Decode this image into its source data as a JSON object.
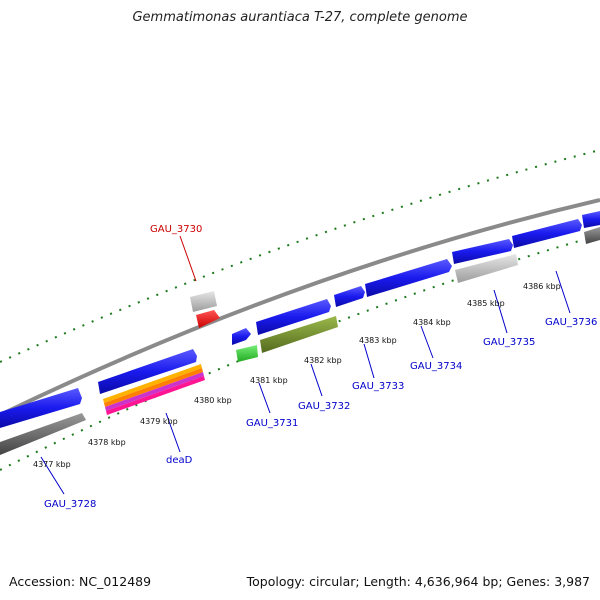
{
  "title": "Gemmatimonas aurantiaca T-27, complete genome",
  "footer": {
    "accession": "Accession: NC_012489",
    "summary": "Topology: circular; Length: 4,636,964 bp; Genes: 3,987"
  },
  "colors": {
    "forward_cds": "#1a1aee",
    "reverse_cds": "#6e6e6e",
    "grey_gene": "#c4c4c4",
    "highlight_gene": "#ee1111",
    "green_gene": "#33cc33",
    "olive_gene": "#6b8e23",
    "backbone": "#8a8a8a",
    "gc_ticks": "#1e7a1e",
    "label_blue": "#0000cc",
    "label_red": "#cc0000"
  },
  "kbp_labels": [
    "4377 kbp",
    "4378 kbp",
    "4379 kbp",
    "4380 kbp",
    "4381 kbp",
    "4382 kbp",
    "4383 kbp",
    "4384 kbp",
    "4385 kbp",
    "4386 kbp"
  ],
  "gene_labels": [
    "GAU_3728",
    "deaD",
    "GAU_3730",
    "GAU_3731",
    "GAU_3732",
    "GAU_3733",
    "GAU_3734",
    "GAU_3735",
    "GAU_3736"
  ]
}
